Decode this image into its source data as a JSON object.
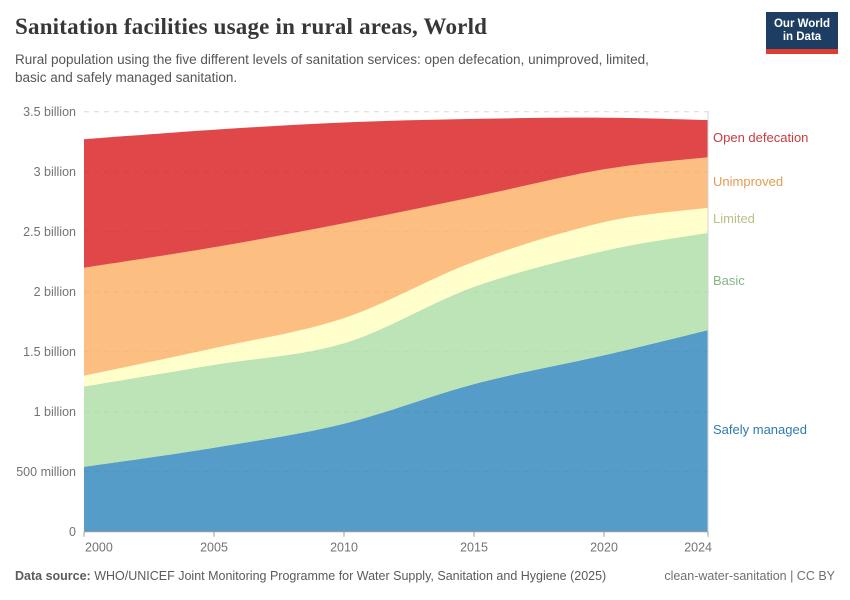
{
  "header": {
    "title": "Sanitation facilities usage in rural areas, World",
    "subtitle_lines": [
      "Rural population using the five different levels of sanitation services: open defecation, unimproved, limited,",
      "basic and safely managed sanitation."
    ],
    "logo": {
      "line1": "Our World",
      "line2": "in Data"
    }
  },
  "footer": {
    "source_label": "Data source:",
    "source_text": " WHO/UNICEF Joint Monitoring Programme for Water Supply, Sanitation and Hygiene (2025)",
    "license": "clean-water-sanitation | CC BY"
  },
  "chart_data": {
    "type": "area",
    "stacked": true,
    "title": "Sanitation facilities usage in rural areas, World",
    "unit": "billion people",
    "x": [
      2000,
      2005,
      2010,
      2015,
      2020,
      2024
    ],
    "x_ticks": [
      "2000",
      "2005",
      "2010",
      "2015",
      "2020",
      "2024"
    ],
    "y_ticks": [
      {
        "value": 0,
        "label": "0"
      },
      {
        "value": 0.5,
        "label": "500 million"
      },
      {
        "value": 1,
        "label": "1 billion"
      },
      {
        "value": 1.5,
        "label": "1.5 billion"
      },
      {
        "value": 2,
        "label": "2 billion"
      },
      {
        "value": 2.5,
        "label": "2.5 billion"
      },
      {
        "value": 3,
        "label": "3 billion"
      },
      {
        "value": 3.5,
        "label": "3.5 billion"
      }
    ],
    "ylim": [
      0,
      3.5
    ],
    "grid": true,
    "fill_opacity": 0.8,
    "legend_position": "right",
    "series": [
      {
        "name": "Safely managed",
        "color": "#2b83ba",
        "label_color": "#2d7cb0",
        "values": [
          0.54,
          0.7,
          0.9,
          1.23,
          1.47,
          1.68
        ]
      },
      {
        "name": "Basic",
        "color": "#abdda4",
        "label_color": "#84b586",
        "values": [
          0.67,
          0.69,
          0.67,
          0.81,
          0.87,
          0.81
        ]
      },
      {
        "name": "Limited",
        "color": "#ffffbf",
        "label_color": "#bcbe86",
        "values": [
          0.09,
          0.14,
          0.21,
          0.21,
          0.24,
          0.21
        ]
      },
      {
        "name": "Unimproved",
        "color": "#fdae61",
        "label_color": "#e19c51",
        "values": [
          0.9,
          0.84,
          0.79,
          0.54,
          0.44,
          0.42
        ]
      },
      {
        "name": "Open defecation",
        "color": "#d7191c",
        "label_color": "#c93b3f",
        "values": [
          1.07,
          0.98,
          0.84,
          0.65,
          0.43,
          0.31
        ]
      }
    ]
  }
}
